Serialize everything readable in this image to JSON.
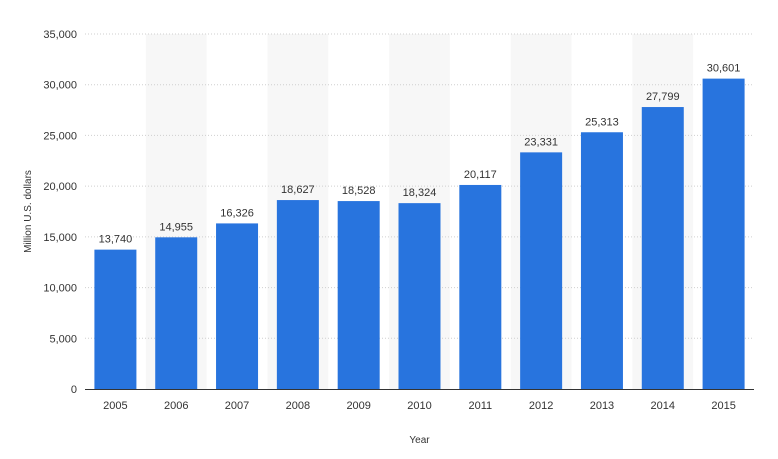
{
  "chart_data": {
    "type": "bar",
    "categories": [
      "2005",
      "2006",
      "2007",
      "2008",
      "2009",
      "2010",
      "2011",
      "2012",
      "2013",
      "2014",
      "2015"
    ],
    "values": [
      13740,
      14955,
      16326,
      18627,
      18528,
      18324,
      20117,
      23331,
      25313,
      27799,
      30601
    ],
    "value_labels": [
      "13,740",
      "14,955",
      "16,326",
      "18,627",
      "18,528",
      "18,324",
      "20,117",
      "23,331",
      "25,313",
      "27,799",
      "30,601"
    ],
    "title": "",
    "xlabel": "Year",
    "ylabel": "Million U.S. dollars",
    "ylim": [
      0,
      35000
    ],
    "yticks": [
      0,
      5000,
      10000,
      15000,
      20000,
      25000,
      30000,
      35000
    ],
    "ytick_labels": [
      "0",
      "5,000",
      "10,000",
      "15,000",
      "20,000",
      "25,000",
      "30,000",
      "35,000"
    ],
    "grid": "horizontal dotted",
    "colors": {
      "bar": "#2874de",
      "band": "#f7f7f7",
      "grid": "#cfcfcf",
      "text": "#333333",
      "axis": "#333333"
    }
  }
}
